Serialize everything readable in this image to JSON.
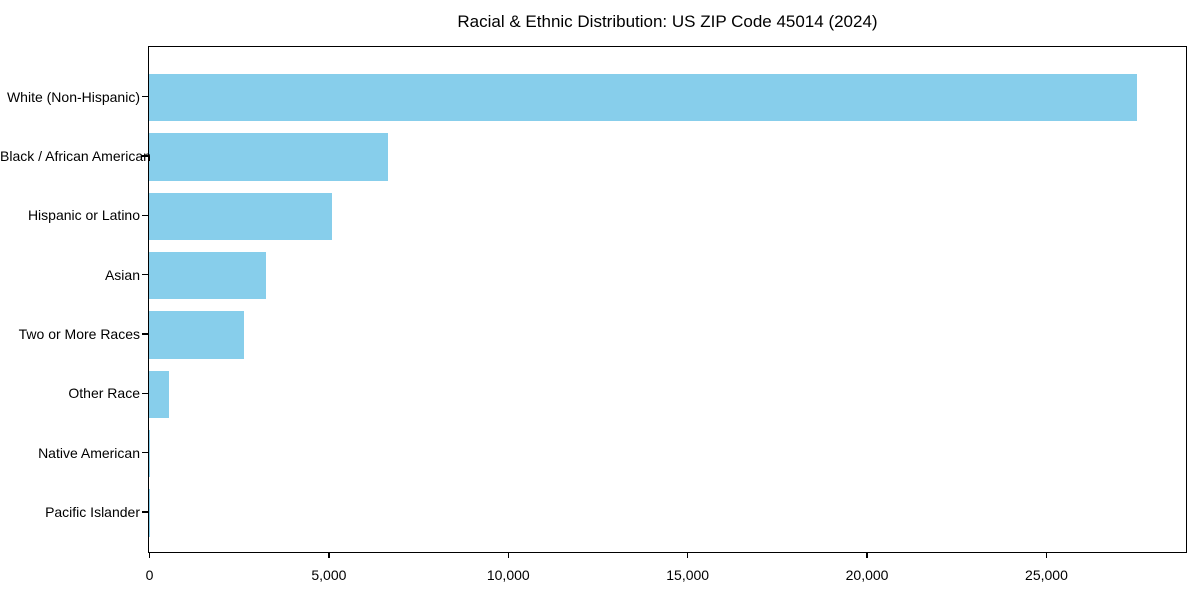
{
  "title": "Racial & Ethnic Distribution: US ZIP Code 45014 (2024)",
  "colors": {
    "bar": "#87CEEB",
    "axis": "#000000",
    "text": "#000000",
    "background": "#ffffff"
  },
  "chart_data": {
    "type": "bar",
    "orientation": "horizontal",
    "title": "Racial & Ethnic Distribution: US ZIP Code 45014 (2024)",
    "xlabel": "",
    "ylabel": "",
    "categories": [
      "White (Non-Hispanic)",
      "Black / African American",
      "Hispanic or Latino",
      "Asian",
      "Two or More Races",
      "Other Race",
      "Native American",
      "Pacific Islander"
    ],
    "values": [
      27500,
      6650,
      5100,
      3250,
      2650,
      550,
      40,
      15
    ],
    "xlim": [
      0,
      28875
    ],
    "xticks": [
      0,
      5000,
      10000,
      15000,
      20000,
      25000
    ],
    "xtick_labels": [
      "0",
      "5,000",
      "10,000",
      "15,000",
      "20,000",
      "25,000"
    ],
    "bar_color": "#87CEEB",
    "grid": false,
    "legend_position": "none"
  }
}
